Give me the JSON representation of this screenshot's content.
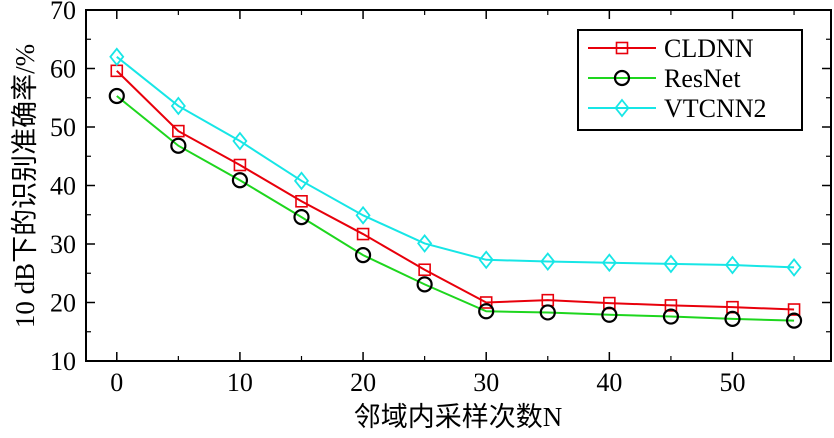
{
  "chart_data": {
    "type": "line",
    "title": "",
    "xlabel": "邻域内采样次数N",
    "ylabel": "10 dB下的识别准确率/%",
    "x": [
      0,
      5,
      10,
      15,
      20,
      25,
      30,
      35,
      40,
      45,
      50,
      55
    ],
    "xlim": [
      -2.5,
      58
    ],
    "ylim": [
      10,
      70
    ],
    "xticks": [
      0,
      10,
      20,
      30,
      40,
      50
    ],
    "yticks": [
      10,
      20,
      30,
      40,
      50,
      60,
      70
    ],
    "grid": false,
    "legend_position": "top-right",
    "series": [
      {
        "name": "CLDNN",
        "color": "#e8000b",
        "marker": "square",
        "values": [
          59.6,
          49.3,
          43.5,
          37.3,
          31.7,
          25.6,
          20.0,
          20.4,
          19.9,
          19.5,
          19.2,
          18.8
        ]
      },
      {
        "name": "ResNet",
        "color": "#1ed61e",
        "marker": "circle",
        "values": [
          55.3,
          46.8,
          40.9,
          34.6,
          28.1,
          23.1,
          18.5,
          18.3,
          17.9,
          17.6,
          17.2,
          16.9
        ]
      },
      {
        "name": "VTCNN2",
        "color": "#17e6e6",
        "marker": "diamond",
        "values": [
          62.0,
          53.6,
          47.6,
          40.8,
          34.9,
          30.1,
          27.3,
          27.0,
          26.8,
          26.6,
          26.4,
          26.0
        ]
      }
    ]
  }
}
